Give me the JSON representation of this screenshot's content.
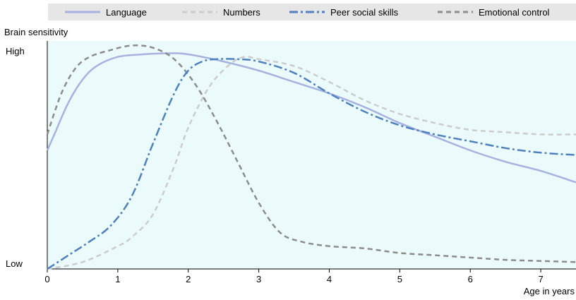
{
  "chart_data": {
    "type": "line",
    "title": "",
    "ylabel": "Brain sensitivity",
    "xlabel": "Age in years",
    "y_tick_labels": [
      "High",
      "Low"
    ],
    "x_ticks": [
      "0",
      "1",
      "2",
      "3",
      "4",
      "5",
      "6",
      "7"
    ],
    "xlim": [
      0,
      7.5
    ],
    "ylim": [
      0,
      1
    ],
    "legend_position": "top",
    "series": [
      {
        "name": "Language",
        "color": "#a7b2e0",
        "style": "solid",
        "x": [
          0,
          0.1,
          0.3,
          0.5,
          0.7,
          1.0,
          1.3,
          1.6,
          1.9,
          2.2,
          2.5,
          3.0,
          3.5,
          4.0,
          4.5,
          5.0,
          5.5,
          6.0,
          6.5,
          7.0,
          7.5
        ],
        "y": [
          0.52,
          0.59,
          0.73,
          0.83,
          0.89,
          0.93,
          0.94,
          0.945,
          0.945,
          0.93,
          0.91,
          0.87,
          0.82,
          0.77,
          0.71,
          0.64,
          0.58,
          0.52,
          0.47,
          0.43,
          0.38
        ]
      },
      {
        "name": "Numbers",
        "color": "#cccccc",
        "style": "dashed",
        "x": [
          0,
          0.5,
          1.0,
          1.2,
          1.5,
          1.8,
          2.0,
          2.3,
          2.6,
          2.8,
          3.0,
          3.5,
          4.0,
          4.5,
          5.0,
          5.5,
          6.0,
          6.5,
          7.0,
          7.5
        ],
        "y": [
          0.0,
          0.03,
          0.1,
          0.14,
          0.24,
          0.45,
          0.62,
          0.8,
          0.9,
          0.93,
          0.92,
          0.89,
          0.82,
          0.74,
          0.68,
          0.64,
          0.61,
          0.6,
          0.59,
          0.59
        ]
      },
      {
        "name": "Peer social skills",
        "color": "#4f81bd",
        "style": "dashdot",
        "x": [
          0,
          0.3,
          0.6,
          0.9,
          1.2,
          1.5,
          1.8,
          2.0,
          2.2,
          2.4,
          2.7,
          3.0,
          3.5,
          4.0,
          4.5,
          5.0,
          5.5,
          6.0,
          6.5,
          7.0,
          7.5
        ],
        "y": [
          0.0,
          0.06,
          0.12,
          0.19,
          0.32,
          0.55,
          0.77,
          0.87,
          0.91,
          0.92,
          0.92,
          0.91,
          0.86,
          0.77,
          0.69,
          0.63,
          0.59,
          0.56,
          0.53,
          0.51,
          0.5
        ]
      },
      {
        "name": "Emotional control",
        "color": "#8c8c8c",
        "style": "dashed",
        "x": [
          0,
          0.2,
          0.4,
          0.6,
          0.9,
          1.2,
          1.5,
          1.8,
          2.1,
          2.4,
          2.7,
          3.0,
          3.3,
          3.6,
          4.0,
          4.5,
          5.0,
          5.5,
          6.0,
          6.5,
          7.0,
          7.5
        ],
        "y": [
          0.59,
          0.77,
          0.88,
          0.93,
          0.96,
          0.98,
          0.97,
          0.92,
          0.81,
          0.65,
          0.47,
          0.29,
          0.16,
          0.12,
          0.1,
          0.09,
          0.07,
          0.06,
          0.05,
          0.04,
          0.035,
          0.03
        ]
      }
    ]
  }
}
